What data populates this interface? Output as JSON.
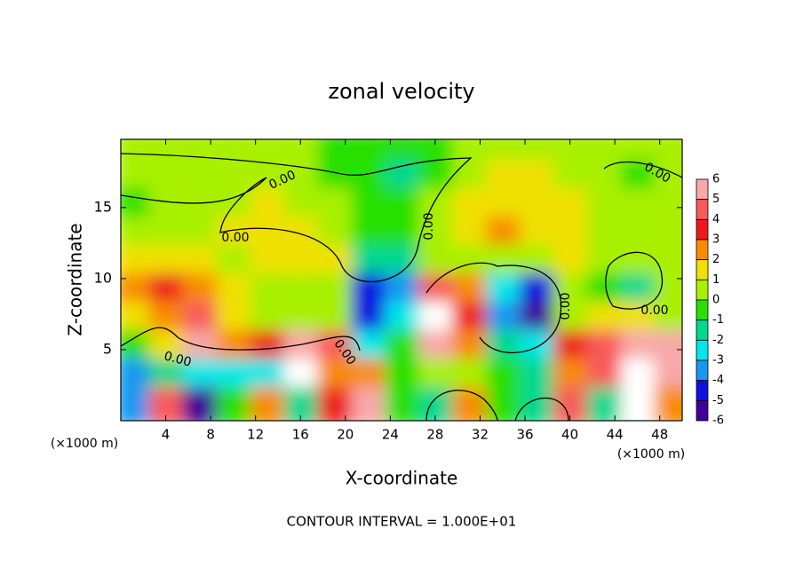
{
  "chart_data": {
    "type": "heatmap",
    "title": "zonal velocity",
    "x_label": "X-coordinate",
    "y_label": "Z-coordinate",
    "x_unit_labels": [
      "(×1000 m)",
      "(×1000 m)"
    ],
    "footer": "CONTOUR INTERVAL = 1.000E+01",
    "contour_labels": [
      "0.00",
      "0.00",
      "0.00",
      "0.00",
      "0.00",
      "0.00",
      "0.00",
      "0.00"
    ],
    "x": [
      1.5,
      4.5,
      7.5,
      10.5,
      13.5,
      16.5,
      19.5,
      22.5,
      25.5,
      28.5,
      31.5,
      34.5,
      37.5,
      40.5,
      43.5,
      46.5,
      49.5
    ],
    "y": [
      19,
      17,
      15,
      13,
      11,
      9,
      7,
      5,
      3,
      1
    ],
    "z": [
      [
        0,
        0,
        0,
        0,
        0,
        0,
        -0.5,
        -1,
        -1,
        -0.5,
        0.5,
        0.5,
        0.5,
        0,
        0,
        0,
        0
      ],
      [
        0.5,
        0.5,
        0,
        0,
        0,
        0,
        -0.5,
        -1,
        -2,
        -0.5,
        0.5,
        1,
        1,
        0.5,
        0,
        -0.5,
        0
      ],
      [
        -0.5,
        0,
        0.5,
        0.5,
        1,
        0.5,
        0,
        -0.5,
        -1,
        0,
        1,
        1.5,
        1.5,
        1,
        0.5,
        0,
        0
      ],
      [
        0,
        0.5,
        0.5,
        1,
        1,
        1,
        0.5,
        -1,
        -1,
        0,
        1,
        2,
        1.5,
        1,
        0.5,
        0.5,
        0.5
      ],
      [
        1,
        1,
        1,
        0.5,
        1,
        1,
        1,
        -2,
        -2,
        0,
        0,
        0,
        0.5,
        1,
        0,
        0,
        0.5
      ],
      [
        2.5,
        3,
        2,
        1,
        0.5,
        0.5,
        0.5,
        -5,
        -4,
        4,
        2,
        -3,
        -5,
        0.5,
        -0.5,
        -2,
        0
      ],
      [
        1,
        2,
        4,
        1,
        0,
        0,
        0,
        -5,
        -3,
        7,
        3,
        -4,
        -6,
        0,
        1,
        1,
        0
      ],
      [
        -1,
        1,
        5,
        2,
        3,
        6,
        4,
        -3,
        -1,
        6,
        2,
        -2,
        -3,
        3,
        4,
        6,
        6
      ],
      [
        -4,
        -2,
        -3,
        -3,
        -3,
        7,
        2,
        2,
        -1,
        0,
        0,
        -1,
        -2,
        2,
        4,
        7,
        5
      ],
      [
        -4,
        4,
        -6,
        -1,
        2,
        -2,
        3,
        5,
        -1,
        -2,
        2,
        -1,
        -2,
        4,
        -2,
        7,
        2
      ]
    ],
    "xlim": [
      0,
      50
    ],
    "ylim": [
      0,
      19.8
    ],
    "xticks": [
      4,
      8,
      12,
      16,
      20,
      24,
      28,
      32,
      36,
      40,
      44,
      48
    ],
    "yticks": [
      5,
      10,
      15
    ],
    "colorbar": {
      "ticks": [
        6,
        5,
        4,
        3,
        2,
        1,
        0,
        -1,
        -2,
        -3,
        -4,
        -5,
        -6
      ],
      "colors": [
        "#f8a8a8",
        "#f85a5a",
        "#ee1a1a",
        "#f88c00",
        "#f0e000",
        "#a8f000",
        "#28e000",
        "#00d890",
        "#00e8e8",
        "#1898f0",
        "#1010e0",
        "#400098"
      ],
      "over_color": "#ffffff"
    }
  }
}
